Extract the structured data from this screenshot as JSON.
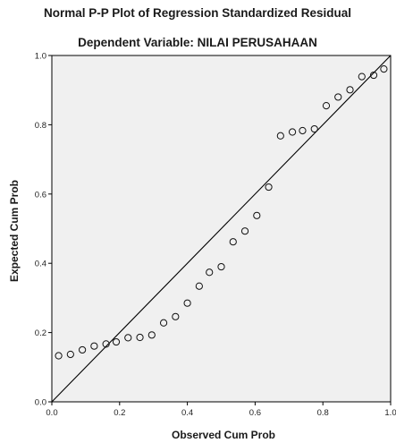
{
  "chart_data": {
    "type": "scatter",
    "title": "Normal P-P Plot of Regression Standardized Residual",
    "subtitle": "Dependent Variable: NILAI PERUSAHAAN",
    "xlabel": "Observed Cum Prob",
    "ylabel": "Expected Cum Prob",
    "xlim": [
      0,
      1
    ],
    "ylim": [
      0,
      1
    ],
    "x_ticks": [
      "0.0",
      "0.2",
      "0.4",
      "0.6",
      "0.8",
      "1.0"
    ],
    "y_ticks": [
      "0.0",
      "0.2",
      "0.4",
      "0.6",
      "0.8",
      "1.0"
    ],
    "grid": false,
    "plot_background": "#f0f0f0",
    "marker": "hollow-circle",
    "reference_line": [
      [
        0,
        0
      ],
      [
        1,
        1
      ]
    ],
    "points": [
      {
        "x": 0.02,
        "y": 0.133
      },
      {
        "x": 0.055,
        "y": 0.137
      },
      {
        "x": 0.09,
        "y": 0.15
      },
      {
        "x": 0.125,
        "y": 0.161
      },
      {
        "x": 0.16,
        "y": 0.167
      },
      {
        "x": 0.19,
        "y": 0.173
      },
      {
        "x": 0.225,
        "y": 0.185
      },
      {
        "x": 0.26,
        "y": 0.186
      },
      {
        "x": 0.295,
        "y": 0.193
      },
      {
        "x": 0.33,
        "y": 0.228
      },
      {
        "x": 0.365,
        "y": 0.246
      },
      {
        "x": 0.4,
        "y": 0.285
      },
      {
        "x": 0.435,
        "y": 0.334
      },
      {
        "x": 0.465,
        "y": 0.374
      },
      {
        "x": 0.5,
        "y": 0.39
      },
      {
        "x": 0.535,
        "y": 0.462
      },
      {
        "x": 0.57,
        "y": 0.493
      },
      {
        "x": 0.605,
        "y": 0.538
      },
      {
        "x": 0.64,
        "y": 0.62
      },
      {
        "x": 0.675,
        "y": 0.768
      },
      {
        "x": 0.71,
        "y": 0.779
      },
      {
        "x": 0.74,
        "y": 0.783
      },
      {
        "x": 0.775,
        "y": 0.788
      },
      {
        "x": 0.81,
        "y": 0.855
      },
      {
        "x": 0.845,
        "y": 0.88
      },
      {
        "x": 0.88,
        "y": 0.901
      },
      {
        "x": 0.915,
        "y": 0.939
      },
      {
        "x": 0.95,
        "y": 0.943
      },
      {
        "x": 0.98,
        "y": 0.961
      }
    ]
  }
}
